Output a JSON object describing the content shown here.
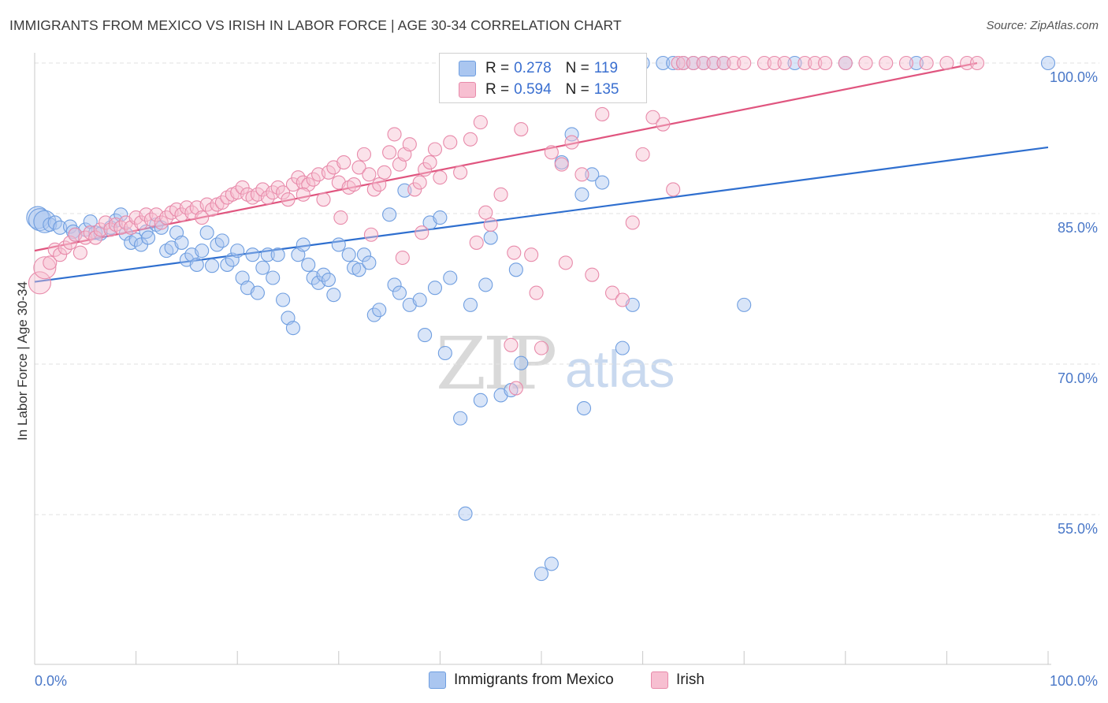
{
  "title": "IMMIGRANTS FROM MEXICO VS IRISH IN LABOR FORCE | AGE 30-34 CORRELATION CHART",
  "source": "Source: ZipAtlas.com",
  "watermark": {
    "zip": "ZIP",
    "atlas": "atlas"
  },
  "legend": {
    "rows": [
      {
        "r_label": "R =",
        "r_value": "0.278",
        "n_label": "N =",
        "n_value": "119",
        "color": "#aac6f0",
        "border": "#6f9ee0"
      },
      {
        "r_label": "R =",
        "r_value": "0.594",
        "n_label": "N =",
        "n_value": "135",
        "color": "#f7bfd1",
        "border": "#e88aaa"
      }
    ]
  },
  "bottom_legend": [
    {
      "label": "Immigrants from Mexico",
      "color": "#aac6f0",
      "border": "#6f9ee0"
    },
    {
      "label": "Irish",
      "color": "#f7bfd1",
      "border": "#e88aaa"
    }
  ],
  "chart_data": {
    "type": "scatter",
    "xlabel": "",
    "ylabel": "In Labor Force | Age 30-34",
    "xlim": [
      0,
      100
    ],
    "ylim": [
      40,
      102
    ],
    "x_tick_labels": [
      "0.0%",
      "100.0%"
    ],
    "y_ticks": [
      {
        "value": 100,
        "label": "100.0%"
      },
      {
        "value": 85,
        "label": "85.0%"
      },
      {
        "value": 70,
        "label": "70.0%"
      },
      {
        "value": 55,
        "label": "55.0%"
      }
    ],
    "grid": true,
    "legend_position": "top-center",
    "series": [
      {
        "name": "Immigrants from Mexico",
        "color": "#6f9ee0",
        "fill": "rgba(170,198,240,0.45)",
        "trend": {
          "x": [
            0,
            100
          ],
          "y": [
            78.2,
            91.6
          ],
          "color": "#2f6fcf"
        },
        "points": [
          [
            0.3,
            84.6
          ],
          [
            0.5,
            84.4
          ],
          [
            1,
            84.2
          ],
          [
            1.5,
            83.9
          ],
          [
            2,
            84.1
          ],
          [
            2.5,
            83.6
          ],
          [
            3.5,
            83.7
          ],
          [
            3.8,
            83.2
          ],
          [
            4,
            82.9
          ],
          [
            5,
            83.4
          ],
          [
            5.5,
            84.2
          ],
          [
            6,
            83.1
          ],
          [
            6.5,
            83.0
          ],
          [
            7.5,
            83.6
          ],
          [
            8,
            84.3
          ],
          [
            8.5,
            84.9
          ],
          [
            9,
            83.0
          ],
          [
            9.5,
            82.1
          ],
          [
            10,
            82.4
          ],
          [
            10.5,
            81.9
          ],
          [
            11,
            83.2
          ],
          [
            11.2,
            82.6
          ],
          [
            12,
            83.9
          ],
          [
            12.5,
            83.6
          ],
          [
            13,
            81.3
          ],
          [
            13.5,
            81.6
          ],
          [
            14,
            83.1
          ],
          [
            14.5,
            82.1
          ],
          [
            15,
            80.4
          ],
          [
            15.5,
            80.9
          ],
          [
            16,
            79.9
          ],
          [
            16.5,
            81.3
          ],
          [
            17,
            83.1
          ],
          [
            17.5,
            79.8
          ],
          [
            18,
            81.9
          ],
          [
            18.5,
            82.3
          ],
          [
            19,
            79.9
          ],
          [
            19.5,
            80.4
          ],
          [
            20,
            81.3
          ],
          [
            20.5,
            78.6
          ],
          [
            21,
            77.6
          ],
          [
            21.5,
            80.9
          ],
          [
            22,
            77.1
          ],
          [
            22.5,
            79.6
          ],
          [
            23,
            80.9
          ],
          [
            23.5,
            78.6
          ],
          [
            24,
            80.9
          ],
          [
            24.5,
            76.4
          ],
          [
            25,
            74.6
          ],
          [
            25.5,
            73.6
          ],
          [
            26,
            80.9
          ],
          [
            26.5,
            81.9
          ],
          [
            27,
            79.9
          ],
          [
            27.5,
            78.6
          ],
          [
            28,
            78.1
          ],
          [
            28.5,
            78.9
          ],
          [
            29,
            78.4
          ],
          [
            29.5,
            76.9
          ],
          [
            30,
            81.9
          ],
          [
            31,
            80.9
          ],
          [
            31.5,
            79.6
          ],
          [
            32,
            79.4
          ],
          [
            32.5,
            80.9
          ],
          [
            33,
            80.1
          ],
          [
            33.5,
            74.9
          ],
          [
            34,
            75.4
          ],
          [
            35,
            84.9
          ],
          [
            35.5,
            77.9
          ],
          [
            36,
            77.1
          ],
          [
            36.5,
            87.3
          ],
          [
            37,
            75.9
          ],
          [
            38,
            76.4
          ],
          [
            38.5,
            72.9
          ],
          [
            39,
            84.1
          ],
          [
            39.5,
            77.6
          ],
          [
            40,
            84.6
          ],
          [
            40.5,
            71.1
          ],
          [
            41,
            78.6
          ],
          [
            42,
            64.6
          ],
          [
            42.5,
            55.1
          ],
          [
            43,
            75.9
          ],
          [
            44,
            66.4
          ],
          [
            44.5,
            77.9
          ],
          [
            45,
            82.6
          ],
          [
            46,
            66.9
          ],
          [
            47,
            67.4
          ],
          [
            47.5,
            79.4
          ],
          [
            48,
            70.1
          ],
          [
            50,
            49.1
          ],
          [
            51,
            50.1
          ],
          [
            52,
            90.1
          ],
          [
            53,
            92.9
          ],
          [
            54,
            86.9
          ],
          [
            54.2,
            65.6
          ],
          [
            55,
            88.9
          ],
          [
            56,
            88.1
          ],
          [
            58,
            71.6
          ],
          [
            59,
            75.9
          ],
          [
            60,
            100
          ],
          [
            62,
            100
          ],
          [
            63,
            100
          ],
          [
            64,
            100
          ],
          [
            65,
            100
          ],
          [
            66,
            100
          ],
          [
            67,
            100
          ],
          [
            68,
            100
          ],
          [
            70,
            75.9
          ],
          [
            75,
            100
          ],
          [
            80,
            100
          ],
          [
            87,
            100
          ],
          [
            100,
            100
          ]
        ]
      },
      {
        "name": "Irish",
        "color": "#e88aaa",
        "fill": "rgba(247,191,209,0.45)",
        "trend": {
          "x": [
            0,
            93
          ],
          "y": [
            81.3,
            100.0
          ],
          "color": "#e0557f"
        },
        "points": [
          [
            0.5,
            78.1
          ],
          [
            1,
            79.6
          ],
          [
            1.5,
            80.1
          ],
          [
            2,
            81.4
          ],
          [
            2.5,
            80.9
          ],
          [
            3,
            81.6
          ],
          [
            3.5,
            82.1
          ],
          [
            4,
            82.9
          ],
          [
            4.5,
            81.1
          ],
          [
            5,
            82.6
          ],
          [
            5.5,
            83.1
          ],
          [
            6,
            82.6
          ],
          [
            6.5,
            83.4
          ],
          [
            7,
            84.1
          ],
          [
            7.5,
            83.4
          ],
          [
            8,
            83.9
          ],
          [
            8.5,
            83.6
          ],
          [
            9,
            84.1
          ],
          [
            9.5,
            83.6
          ],
          [
            10,
            84.6
          ],
          [
            10.5,
            84.1
          ],
          [
            11,
            84.9
          ],
          [
            11.5,
            84.4
          ],
          [
            12,
            84.9
          ],
          [
            12.5,
            84.1
          ],
          [
            13,
            84.6
          ],
          [
            13.5,
            85.1
          ],
          [
            14,
            85.4
          ],
          [
            14.5,
            84.9
          ],
          [
            15,
            85.6
          ],
          [
            15.5,
            85.1
          ],
          [
            16,
            85.6
          ],
          [
            16.5,
            84.6
          ],
          [
            17,
            85.9
          ],
          [
            17.5,
            85.4
          ],
          [
            18,
            85.9
          ],
          [
            18.5,
            86.1
          ],
          [
            19,
            86.6
          ],
          [
            19.5,
            86.9
          ],
          [
            20,
            87.1
          ],
          [
            20.5,
            87.6
          ],
          [
            21,
            86.9
          ],
          [
            21.5,
            86.6
          ],
          [
            22,
            86.9
          ],
          [
            22.5,
            87.4
          ],
          [
            23,
            86.6
          ],
          [
            23.5,
            87.1
          ],
          [
            24,
            87.6
          ],
          [
            24.5,
            87.1
          ],
          [
            25,
            86.4
          ],
          [
            25.5,
            87.9
          ],
          [
            26,
            88.6
          ],
          [
            26.5,
            88.1
          ],
          [
            27,
            87.9
          ],
          [
            27.5,
            88.4
          ],
          [
            28,
            88.9
          ],
          [
            28.5,
            86.4
          ],
          [
            29,
            89.1
          ],
          [
            29.5,
            89.6
          ],
          [
            30,
            88.1
          ],
          [
            30.5,
            90.1
          ],
          [
            31,
            87.6
          ],
          [
            31.5,
            87.9
          ],
          [
            32,
            89.6
          ],
          [
            32.5,
            90.9
          ],
          [
            33,
            88.9
          ],
          [
            33.5,
            87.4
          ],
          [
            34,
            87.9
          ],
          [
            34.5,
            89.1
          ],
          [
            35,
            91.1
          ],
          [
            35.5,
            92.9
          ],
          [
            36,
            89.9
          ],
          [
            36.5,
            90.9
          ],
          [
            37,
            91.9
          ],
          [
            37.5,
            87.4
          ],
          [
            38,
            88.1
          ],
          [
            38.5,
            89.4
          ],
          [
            39,
            90.1
          ],
          [
            39.5,
            91.4
          ],
          [
            40,
            88.6
          ],
          [
            41,
            92.1
          ],
          [
            42,
            89.1
          ],
          [
            43,
            92.4
          ],
          [
            44,
            94.1
          ],
          [
            44.5,
            85.1
          ],
          [
            45,
            83.9
          ],
          [
            46,
            86.9
          ],
          [
            47,
            71.9
          ],
          [
            47.5,
            67.6
          ],
          [
            48,
            93.4
          ],
          [
            49,
            80.9
          ],
          [
            50,
            71.6
          ],
          [
            51,
            91.1
          ],
          [
            52,
            89.9
          ],
          [
            53,
            92.1
          ],
          [
            54,
            88.9
          ],
          [
            55,
            78.9
          ],
          [
            56,
            94.9
          ],
          [
            57,
            77.1
          ],
          [
            58,
            76.4
          ],
          [
            59,
            84.1
          ],
          [
            60,
            90.9
          ],
          [
            61,
            94.6
          ],
          [
            62,
            93.9
          ],
          [
            63,
            87.4
          ],
          [
            63.5,
            100
          ],
          [
            64,
            100
          ],
          [
            65,
            100
          ],
          [
            66,
            100
          ],
          [
            67,
            100
          ],
          [
            68,
            100
          ],
          [
            69,
            100
          ],
          [
            70,
            100
          ],
          [
            72,
            100
          ],
          [
            73,
            100
          ],
          [
            74,
            100
          ],
          [
            76,
            100
          ],
          [
            77,
            100
          ],
          [
            78,
            100
          ],
          [
            80,
            100
          ],
          [
            82,
            100
          ],
          [
            84,
            100
          ],
          [
            86,
            100
          ],
          [
            88,
            100
          ],
          [
            90,
            100
          ],
          [
            92,
            100
          ],
          [
            93,
            100
          ],
          [
            26.5,
            86.9
          ],
          [
            30.2,
            84.6
          ],
          [
            33.2,
            82.9
          ],
          [
            36.3,
            80.6
          ],
          [
            38.2,
            83.1
          ],
          [
            43.6,
            82.1
          ],
          [
            47.3,
            81.1
          ],
          [
            49.5,
            77.1
          ],
          [
            52.4,
            80.1
          ]
        ]
      }
    ]
  }
}
